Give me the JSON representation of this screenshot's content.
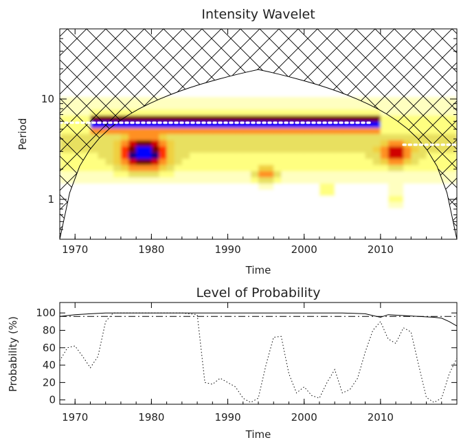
{
  "chart_data": [
    {
      "type": "heatmap",
      "title": "Intensity Wavelet",
      "xlabel": "Time",
      "ylabel": "Period",
      "xlim": [
        1968,
        2020
      ],
      "ylim": [
        0.4,
        50
      ],
      "yscale": "log",
      "xticks": [
        "1970",
        "1980",
        "1990",
        "2000",
        "2010"
      ],
      "yticks": [
        "1",
        "10"
      ],
      "colormap": [
        "#ffffc0",
        "#ffff80",
        "#e8e060",
        "#f0d040",
        "#ff9020",
        "#ff3000",
        "#d00000",
        "#700000",
        "#000080",
        "#0000ff"
      ],
      "cone_of_influence": "cross-hatched",
      "ridges": [
        {
          "color": "white",
          "period": 5.8,
          "x": [
            1968,
            2009
          ]
        },
        {
          "color": "white",
          "period": 3.5,
          "x": [
            2013,
            2020
          ]
        }
      ],
      "power_ridge_period": 5.8,
      "power_ridge_x": [
        1975,
        2009
      ]
    },
    {
      "type": "line",
      "title": "Level of Probability",
      "xlabel": "Time",
      "ylabel": "Probability (%)",
      "xlim": [
        1968,
        2020
      ],
      "ylim": [
        -5,
        112
      ],
      "xticks": [
        "1970",
        "1980",
        "1990",
        "2000",
        "2010"
      ],
      "yticks": [
        "0",
        "20",
        "40",
        "60",
        "80",
        "100"
      ],
      "series": [
        {
          "style": "solid",
          "x": [
            1968,
            1970,
            1972,
            1974,
            1980,
            1990,
            2000,
            2005,
            2008,
            2009,
            2010,
            2011,
            2013,
            2015,
            2017,
            2018,
            2019,
            2020
          ],
          "y": [
            96,
            98,
            99,
            100,
            100,
            100,
            100,
            100,
            99,
            97,
            95,
            98,
            97,
            96,
            95,
            94,
            90,
            85
          ]
        },
        {
          "style": "dashdot",
          "x": [
            1968,
            2020
          ],
          "y": [
            96,
            96
          ]
        },
        {
          "style": "dotted",
          "x": [
            1968,
            1969,
            1970,
            1971,
            1972,
            1973,
            1974,
            1975,
            1980,
            1984,
            1986,
            1987,
            1988,
            1989,
            1990,
            1991,
            1992,
            1993,
            1994,
            1995,
            1996,
            1997,
            1998,
            1999,
            2000,
            2001,
            2002,
            2003,
            2004,
            2005,
            2006,
            2007,
            2008,
            2009,
            2010,
            2011,
            2012,
            2013,
            2014,
            2015,
            2016,
            2017,
            2018,
            2019,
            2020
          ],
          "y": [
            45,
            60,
            62,
            50,
            37,
            50,
            90,
            100,
            100,
            100,
            98,
            20,
            18,
            25,
            20,
            15,
            2,
            -3,
            2,
            40,
            72,
            73,
            30,
            8,
            15,
            5,
            2,
            20,
            35,
            8,
            12,
            25,
            55,
            80,
            90,
            70,
            65,
            83,
            78,
            40,
            3,
            -3,
            2,
            30,
            48
          ]
        }
      ]
    }
  ]
}
